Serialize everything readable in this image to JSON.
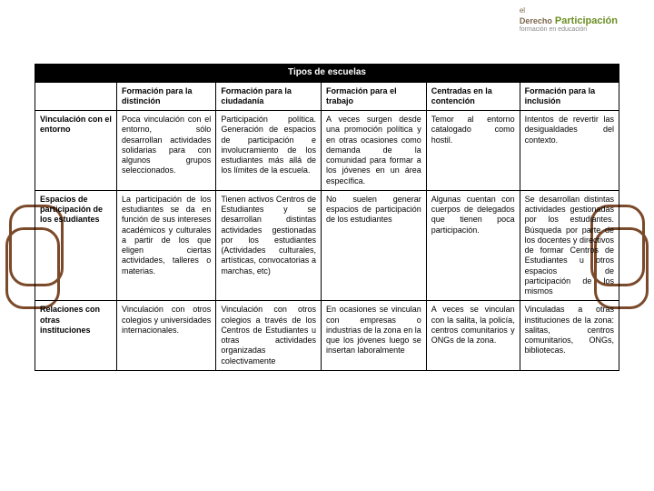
{
  "logo": {
    "line1": "el",
    "line2a": "Derecho",
    "line2b": "Participación",
    "line3": "formación en educación"
  },
  "table": {
    "title": "Tipos de escuelas",
    "columns": [
      "",
      "Formación para la distinción",
      "Formación para la ciudadanía",
      "Formación para el trabajo",
      "Centradas en la contención",
      "Formación para la inclusión"
    ],
    "rows": [
      {
        "header": "Vinculación con el entorno",
        "cells": [
          "Poca vinculación con el entorno, sólo desarrollan actividades solidarias para con algunos grupos seleccionados.",
          "Participación política. Generación de espacios de participación e involucramiento de los estudiantes más allá de los límites de la escuela.",
          "A veces surgen desde una promoción política y en otras ocasiones como demanda de la comunidad para formar a los jóvenes en un área específica.",
          "Temor al entorno catalogado como hostil.",
          "Intentos de revertir las desigualdades del contexto."
        ]
      },
      {
        "header": "Espacios de participación de los estudiantes",
        "cells": [
          "La participación de los estudiantes se da en función de sus intereses académicos y culturales a partir de los que eligen ciertas actividades, talleres o materias.",
          "Tienen activos Centros de Estudiantes y se desarrollan distintas actividades gestionadas por los estudiantes (Actividades culturales, artísticas, convocatorias a marchas, etc)",
          "No suelen generar espacios de participación de los estudiantes",
          "Algunas cuentan con cuerpos de delegados que tienen poca participación.",
          "Se desarrollan distintas actividades gestionadas por los estudiantes. Búsqueda por parte de los docentes y directivos de formar Centros de Estudiantes u otros espacios de participación de los mismos"
        ]
      },
      {
        "header": "Relaciones con otras instituciones",
        "cells": [
          "Vinculación con otros colegios y universidades internacionales.",
          "Vinculación con otros colegios a través de los Centros de Estudiantes u otras actividades organizadas colectivamente",
          "En ocasiones se vinculan con empresas o industrias de la zona en la que los jóvenes luego se insertan laboralmente",
          "A veces se vinculan con la salita, la policía, centros comunitarios y ONGs de la zona.",
          "Vinculadas a otras instituciones de la zona: salitas, centros comunitarios, ONGs, bibliotecas."
        ]
      }
    ]
  },
  "colors": {
    "table_border": "#000000",
    "title_bg": "#000000",
    "title_fg": "#ffffff",
    "deco_border": "#7a4a2a",
    "logo_brown": "#7a654a",
    "logo_green": "#6b8e23"
  }
}
